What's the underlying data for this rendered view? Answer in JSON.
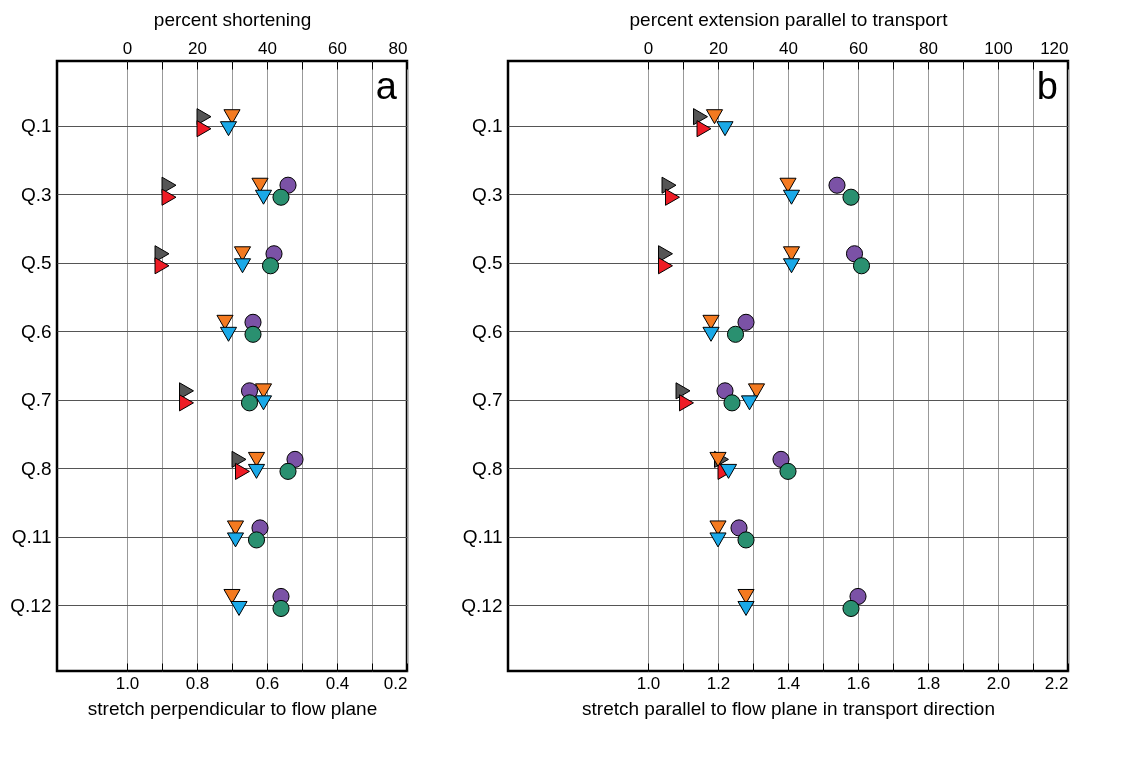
{
  "chart_data": [
    {
      "type": "scatter",
      "orientation": "horizontal",
      "x2label": "percent shortening",
      "xlabel": "stretch perpendicular to flow plane",
      "annotations": [
        "a"
      ],
      "categories": [
        "Q.1",
        "Q.3",
        "Q.5",
        "Q.6",
        "Q.7",
        "Q.8",
        "Q.11",
        "Q.12"
      ],
      "xlim": [
        1.2,
        0.2
      ],
      "xticks": [
        {
          "value": 1,
          "label": "1.0"
        },
        {
          "value": 0.9,
          "label": null
        },
        {
          "value": 0.8,
          "label": "0.8"
        },
        {
          "value": 0.7,
          "label": null
        },
        {
          "value": 0.6,
          "label": "0.6"
        },
        {
          "value": 0.5,
          "label": null
        },
        {
          "value": 0.4,
          "label": "0.4"
        },
        {
          "value": 0.3,
          "label": null
        },
        {
          "value": 0.2,
          "label": "0.2"
        }
      ],
      "x2lim": [
        -20,
        80
      ],
      "x2ticks": [
        0,
        {
          "value": 10,
          "label": null
        },
        20,
        {
          "value": 30,
          "label": null
        },
        40,
        {
          "value": 50,
          "label": null
        },
        60,
        {
          "value": 70,
          "label": null
        },
        80
      ],
      "grid": true,
      "legend": false,
      "series": [
        {
          "color": "#555555",
          "marker": "triangle-right",
          "values": [
            0.78,
            0.88,
            0.9,
            null,
            0.83,
            0.68,
            null,
            null
          ]
        },
        {
          "color": "#ee1c25",
          "marker": "triangle-right",
          "values": [
            0.78,
            0.88,
            0.9,
            null,
            0.83,
            0.67,
            null,
            null
          ]
        },
        {
          "color": "#f47a20",
          "marker": "triangle-down",
          "values": [
            0.7,
            0.62,
            0.67,
            0.72,
            0.61,
            0.63,
            0.69,
            0.7
          ]
        },
        {
          "color": "#1aa9e8",
          "marker": "triangle-down",
          "values": [
            0.71,
            0.61,
            0.67,
            0.71,
            0.61,
            0.63,
            0.69,
            0.68
          ]
        },
        {
          "color": "#7b52a6",
          "marker": "circle",
          "values": [
            null,
            0.54,
            0.58,
            0.64,
            0.65,
            0.52,
            0.62,
            0.56
          ]
        },
        {
          "color": "#2a9070",
          "marker": "circle",
          "values": [
            null,
            0.56,
            0.59,
            0.64,
            0.65,
            0.54,
            0.63,
            0.56
          ]
        }
      ]
    },
    {
      "type": "scatter",
      "orientation": "horizontal",
      "x2label": "percent extension parallel to transport",
      "xlabel": "stretch parallel to flow plane in transport direction",
      "annotations": [
        "b"
      ],
      "categories": [
        "Q.1",
        "Q.3",
        "Q.5",
        "Q.6",
        "Q.7",
        "Q.8",
        "Q.11",
        "Q.12"
      ],
      "xlim": [
        0.6,
        2.2
      ],
      "xticks": [
        {
          "value": 1,
          "label": "1.0"
        },
        {
          "value": 1.1,
          "label": null
        },
        {
          "value": 1.2,
          "label": "1.2"
        },
        {
          "value": 1.3,
          "label": null
        },
        {
          "value": 1.4,
          "label": "1.4"
        },
        {
          "value": 1.5,
          "label": null
        },
        {
          "value": 1.6,
          "label": "1.6"
        },
        {
          "value": 1.7,
          "label": null
        },
        {
          "value": 1.8,
          "label": "1.8"
        },
        {
          "value": 1.9,
          "label": null
        },
        {
          "value": 2,
          "label": "2.0"
        },
        {
          "value": 2.1,
          "label": null
        },
        {
          "value": 2.2,
          "label": "2.2"
        }
      ],
      "x2lim": [
        -40,
        120
      ],
      "x2ticks": [
        0,
        {
          "value": 10,
          "label": null
        },
        20,
        {
          "value": 30,
          "label": null
        },
        40,
        {
          "value": 50,
          "label": null
        },
        60,
        {
          "value": 70,
          "label": null
        },
        80,
        {
          "value": 90,
          "label": null
        },
        100,
        {
          "value": 110,
          "label": null
        },
        120
      ],
      "grid": true,
      "legend": false,
      "series": [
        {
          "color": "#555555",
          "marker": "triangle-right",
          "values": [
            1.15,
            1.06,
            1.05,
            null,
            1.1,
            1.21,
            null,
            null
          ]
        },
        {
          "color": "#ee1c25",
          "marker": "triangle-right",
          "values": [
            1.16,
            1.07,
            1.05,
            null,
            1.11,
            1.22,
            null,
            null
          ]
        },
        {
          "color": "#f47a20",
          "marker": "triangle-down",
          "values": [
            1.19,
            1.4,
            1.41,
            1.18,
            1.31,
            1.2,
            1.2,
            1.28
          ]
        },
        {
          "color": "#1aa9e8",
          "marker": "triangle-down",
          "values": [
            1.22,
            1.41,
            1.41,
            1.18,
            1.29,
            1.23,
            1.2,
            1.28
          ]
        },
        {
          "color": "#7b52a6",
          "marker": "circle",
          "values": [
            null,
            1.54,
            1.59,
            1.28,
            1.22,
            1.38,
            1.26,
            1.6
          ]
        },
        {
          "color": "#2a9070",
          "marker": "circle",
          "values": [
            null,
            1.58,
            1.61,
            1.25,
            1.24,
            1.4,
            1.28,
            1.58
          ]
        }
      ]
    }
  ]
}
